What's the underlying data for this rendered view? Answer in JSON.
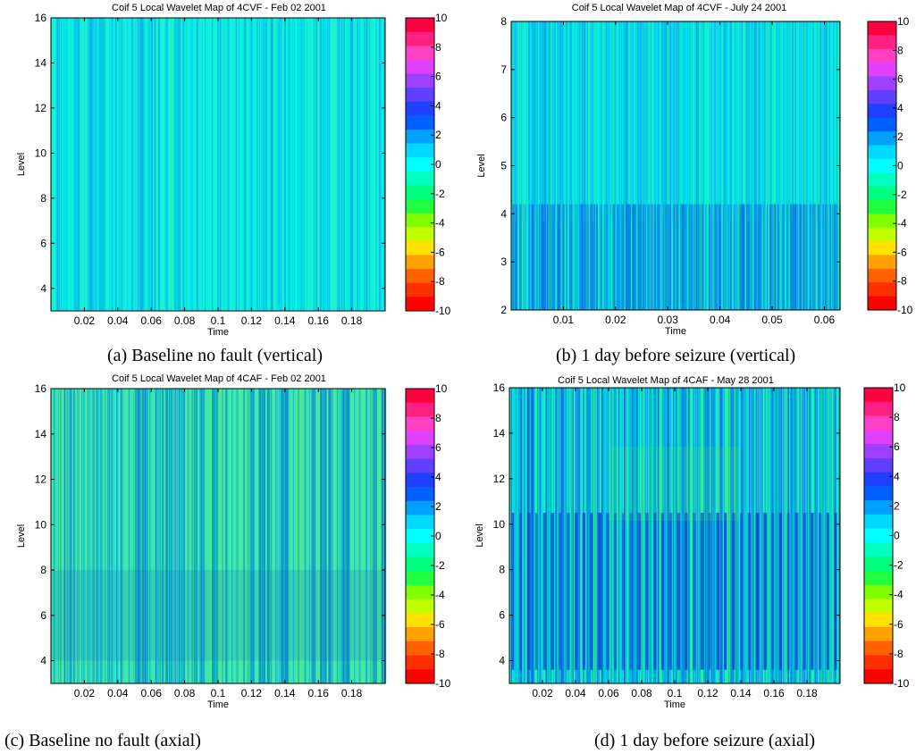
{
  "chart_data": [
    {
      "type": "heatmap",
      "title": "Coif 5 Local Wavelet Map of 4CVF - Feb 02 2001",
      "xlabel": "Time",
      "ylabel": "Level",
      "xlim": [
        0,
        0.2
      ],
      "ylim": [
        3,
        16
      ],
      "xticks": [
        "0.02",
        "0.04",
        "0.06",
        "0.08",
        "0.1",
        "0.12",
        "0.14",
        "0.16",
        "0.18"
      ],
      "yticks": [
        "4",
        "6",
        "8",
        "10",
        "12",
        "14",
        "16"
      ],
      "colorbar": {
        "min": -10,
        "max": 10,
        "ticks": [
          "10",
          "8",
          "6",
          "4",
          "2",
          "0",
          "-2",
          "-4",
          "-6",
          "-8",
          "-10"
        ]
      },
      "colors": {
        "base": "#00f0f0",
        "stripe_dark": "#1090d0",
        "stripe_light": "#40f0b0"
      },
      "pattern": "fine vertical stripes, mostly near 0 (cyan), low intensity",
      "caption": "(a) Baseline no fault (vertical)"
    },
    {
      "type": "heatmap",
      "title": "Coif 5 Local Wavelet Map of 4CVF - July 24 2001",
      "xlabel": "Time",
      "ylabel": "Level",
      "xlim": [
        0,
        0.063
      ],
      "ylim": [
        2,
        8
      ],
      "xticks": [
        "0.01",
        "0.02",
        "0.03",
        "0.04",
        "0.05",
        "0.06"
      ],
      "yticks": [
        "2",
        "3",
        "4",
        "5",
        "6",
        "7",
        "8"
      ],
      "colorbar": {
        "min": -10,
        "max": 10,
        "ticks": [
          "10",
          "8",
          "6",
          "4",
          "2",
          "0",
          "-2",
          "-4",
          "-6",
          "-8",
          "-10"
        ]
      },
      "colors": {
        "base": "#00f0f0",
        "stripe_dark": "#1070e0",
        "stripe_light": "#30f090"
      },
      "pattern": "periodic blue bands at low levels (2-4), cyan above",
      "caption": "(b) 1 day before seizure (vertical)"
    },
    {
      "type": "heatmap",
      "title": "Coif 5 Local Wavelet Map of 4CAF - Feb 02 2001",
      "xlabel": "Time",
      "ylabel": "Level",
      "xlim": [
        0,
        0.2
      ],
      "ylim": [
        3,
        16
      ],
      "xticks": [
        "0.02",
        "0.04",
        "0.06",
        "0.08",
        "0.1",
        "0.12",
        "0.14",
        "0.16",
        "0.18"
      ],
      "yticks": [
        "4",
        "6",
        "8",
        "10",
        "12",
        "14",
        "16"
      ],
      "colorbar": {
        "min": -10,
        "max": 10,
        "ticks": [
          "10",
          "8",
          "6",
          "4",
          "2",
          "0",
          "-2",
          "-4",
          "-6",
          "-8",
          "-10"
        ]
      },
      "colors": {
        "base": "#20e0d0",
        "stripe_dark": "#1080c0",
        "stripe_light": "#60f080"
      },
      "pattern": "dense vertical stripes with green tint, slightly darker at levels 4-8",
      "caption": "(c) Baseline no fault (axial)"
    },
    {
      "type": "heatmap",
      "title": "Coif 5 Local Wavelet Map of 4CAF - May 28 2001",
      "xlabel": "Time",
      "ylabel": "Level",
      "xlim": [
        0,
        0.2
      ],
      "ylim": [
        3,
        16
      ],
      "xticks": [
        "0.02",
        "0.04",
        "0.06",
        "0.08",
        "0.1",
        "0.12",
        "0.14",
        "0.16",
        "0.18"
      ],
      "yticks": [
        "4",
        "6",
        "8",
        "10",
        "12",
        "14",
        "16"
      ],
      "colorbar": {
        "min": -10,
        "max": 10,
        "ticks": [
          "10",
          "8",
          "6",
          "4",
          "2",
          "0",
          "-2",
          "-4",
          "-6",
          "-8",
          "-10"
        ]
      },
      "colors": {
        "base": "#00e8e8",
        "stripe_dark": "#1040d0",
        "stripe_light": "#50f070"
      },
      "pattern": "strong periodic blue vertical stripes across levels 4-10, cyan/green above",
      "caption": "(d) 1 day before seizure (axial)"
    }
  ]
}
